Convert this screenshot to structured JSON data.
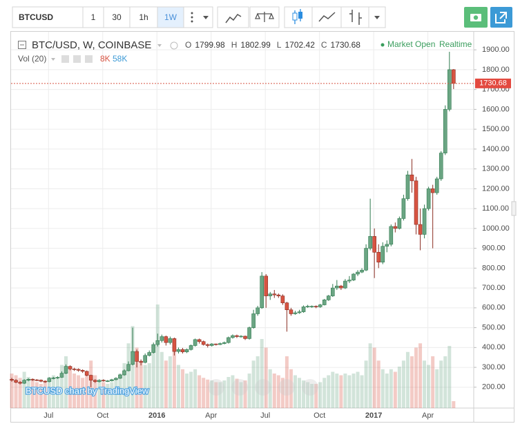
{
  "toolbar": {
    "symbol": "BTCUSD",
    "intervals": [
      "1",
      "30",
      "1h",
      "1W"
    ]
  },
  "legend": {
    "title": "BTC/USD, W, COINBASE",
    "ohlc_letters": [
      "O",
      "H",
      "L",
      "C"
    ],
    "status": "Market Open",
    "mode": "Realtime",
    "volume_title": "Vol (20)",
    "volume_value": "8K",
    "volume_ma": "58K"
  },
  "watermark": "BTCUSD chart by TradingView",
  "chart_data": {
    "type": "candlestick",
    "up_color": "#6ba583",
    "down_color": "#d75442",
    "open": [
      240,
      235,
      225,
      220,
      235,
      240,
      237,
      236,
      230,
      228,
      245,
      247,
      250,
      270,
      305,
      292,
      290,
      285,
      280,
      260,
      235,
      228,
      235,
      232,
      232,
      238,
      245,
      262,
      283,
      315,
      380,
      330,
      325,
      360,
      375,
      415,
      435,
      455,
      425,
      445,
      380,
      390,
      378,
      390,
      410,
      440,
      430,
      415,
      410,
      418,
      415,
      420,
      425,
      450,
      460,
      455,
      457,
      445,
      500,
      570,
      600,
      760,
      660,
      670,
      665,
      660,
      625,
      590,
      570,
      575,
      580,
      605,
      608,
      608,
      605,
      615,
      640,
      660,
      700,
      710,
      700,
      735,
      740,
      770,
      780,
      790,
      900,
      960,
      880,
      830,
      910,
      920,
      1010,
      1000,
      1050,
      1150,
      1270,
      1240,
      1020,
      970,
      1100,
      1200,
      1180,
      1250,
      1380,
      1600,
      1799.98
    ],
    "high": [
      247,
      240,
      230,
      240,
      245,
      244,
      241,
      239,
      234,
      250,
      252,
      255,
      280,
      315,
      310,
      298,
      295,
      290,
      284,
      263,
      240,
      240,
      240,
      236,
      242,
      250,
      267,
      290,
      330,
      500,
      390,
      340,
      370,
      385,
      425,
      470,
      465,
      460,
      455,
      450,
      400,
      398,
      395,
      415,
      445,
      445,
      435,
      420,
      422,
      420,
      425,
      430,
      455,
      466,
      465,
      462,
      460,
      505,
      590,
      610,
      780,
      770,
      680,
      690,
      672,
      668,
      630,
      600,
      585,
      590,
      612,
      615,
      612,
      612,
      620,
      645,
      665,
      720,
      740,
      715,
      745,
      760,
      775,
      790,
      800,
      920,
      1150,
      1000,
      920,
      930,
      940,
      1020,
      1030,
      1060,
      1170,
      1290,
      1350,
      1260,
      1100,
      1120,
      1210,
      1220,
      1260,
      1390,
      1620,
      1890,
      1802.99
    ],
    "low": [
      228,
      220,
      214,
      216,
      230,
      232,
      231,
      225,
      222,
      225,
      240,
      242,
      247,
      266,
      285,
      282,
      278,
      272,
      255,
      200,
      222,
      224,
      228,
      226,
      229,
      235,
      242,
      258,
      280,
      310,
      300,
      310,
      320,
      355,
      370,
      405,
      425,
      410,
      415,
      360,
      370,
      370,
      372,
      385,
      405,
      420,
      410,
      400,
      405,
      410,
      412,
      416,
      420,
      445,
      448,
      450,
      438,
      440,
      495,
      560,
      595,
      600,
      640,
      650,
      650,
      615,
      480,
      560,
      565,
      570,
      575,
      600,
      600,
      598,
      600,
      612,
      635,
      655,
      690,
      690,
      695,
      725,
      735,
      760,
      775,
      785,
      890,
      750,
      800,
      820,
      880,
      910,
      980,
      995,
      1040,
      1140,
      1180,
      970,
      890,
      950,
      1090,
      900,
      1170,
      1240,
      1370,
      1590,
      1702.42
    ],
    "close": [
      235,
      225,
      220,
      235,
      240,
      237,
      236,
      230,
      228,
      245,
      247,
      250,
      270,
      305,
      292,
      290,
      285,
      280,
      260,
      235,
      228,
      235,
      232,
      232,
      238,
      245,
      262,
      283,
      315,
      380,
      330,
      325,
      360,
      375,
      415,
      435,
      455,
      425,
      445,
      380,
      390,
      378,
      390,
      410,
      440,
      430,
      415,
      410,
      418,
      415,
      420,
      425,
      450,
      460,
      455,
      457,
      445,
      500,
      570,
      600,
      760,
      660,
      670,
      665,
      660,
      625,
      590,
      570,
      575,
      580,
      605,
      608,
      608,
      605,
      615,
      640,
      660,
      700,
      710,
      700,
      735,
      740,
      770,
      780,
      790,
      900,
      960,
      880,
      830,
      910,
      920,
      1010,
      1000,
      1050,
      1150,
      1270,
      1240,
      1020,
      970,
      1100,
      1200,
      1180,
      1250,
      1380,
      1600,
      1799.98,
      1730.68
    ],
    "volume": [
      40000,
      38000,
      35000,
      42000,
      36000,
      34000,
      30000,
      28000,
      32000,
      36000,
      38000,
      35000,
      50000,
      60000,
      45000,
      40000,
      38000,
      35000,
      42000,
      55000,
      38000,
      32000,
      30000,
      28000,
      30000,
      34000,
      40000,
      52000,
      75000,
      95000,
      70000,
      55000,
      50000,
      52000,
      70000,
      120000,
      65000,
      55000,
      60000,
      75000,
      50000,
      45000,
      40000,
      42000,
      45000,
      38000,
      35000,
      33000,
      32000,
      30000,
      30000,
      32000,
      36000,
      38000,
      34000,
      30000,
      32000,
      40000,
      55000,
      60000,
      80000,
      70000,
      45000,
      40000,
      38000,
      35000,
      60000,
      45000,
      38000,
      35000,
      32000,
      30000,
      28000,
      28000,
      30000,
      35000,
      38000,
      42000,
      40000,
      38000,
      40000,
      38000,
      40000,
      42000,
      38000,
      55000,
      75000,
      70000,
      55000,
      45000,
      40000,
      45000,
      42000,
      48000,
      55000,
      65000,
      60000,
      70000,
      75000,
      55000,
      50000,
      60000,
      45000,
      55000,
      60000,
      72000,
      8000
    ],
    "xlim": [
      -0.17,
      110.83
    ],
    "ylim": [
      95,
      1991
    ],
    "xticks": [
      {
        "value": 8.83,
        "label": "Jul"
      },
      {
        "value": 21.83,
        "label": "Oct"
      },
      {
        "value": 34.83,
        "label": "2016"
      },
      {
        "value": 47.83,
        "label": "Apr"
      },
      {
        "value": 60.83,
        "label": "Jul"
      },
      {
        "value": 73.83,
        "label": "Oct"
      },
      {
        "value": 86.83,
        "label": "2017"
      },
      {
        "value": 99.83,
        "label": "Apr"
      }
    ],
    "yticks": [
      {
        "value": 200,
        "label": "200.00"
      },
      {
        "value": 300,
        "label": "300.00"
      },
      {
        "value": 400,
        "label": "400.00"
      },
      {
        "value": 500,
        "label": "500.00"
      },
      {
        "value": 600,
        "label": "600.00"
      },
      {
        "value": 700,
        "label": "700.00"
      },
      {
        "value": 800,
        "label": "800.00"
      },
      {
        "value": 900,
        "label": "900.00"
      },
      {
        "value": 1000,
        "label": "1000.00"
      },
      {
        "value": 1100,
        "label": "1100.00"
      },
      {
        "value": 1200,
        "label": "1200.00"
      },
      {
        "value": 1300,
        "label": "1300.00"
      },
      {
        "value": 1400,
        "label": "1400.00"
      },
      {
        "value": 1500,
        "label": "1500.00"
      },
      {
        "value": 1600,
        "label": "1600.00"
      },
      {
        "value": 1700,
        "label": "1700.00"
      },
      {
        "value": 1800,
        "label": "1800.00"
      },
      {
        "value": 1900,
        "label": "1900.00"
      }
    ],
    "grid": true
  }
}
